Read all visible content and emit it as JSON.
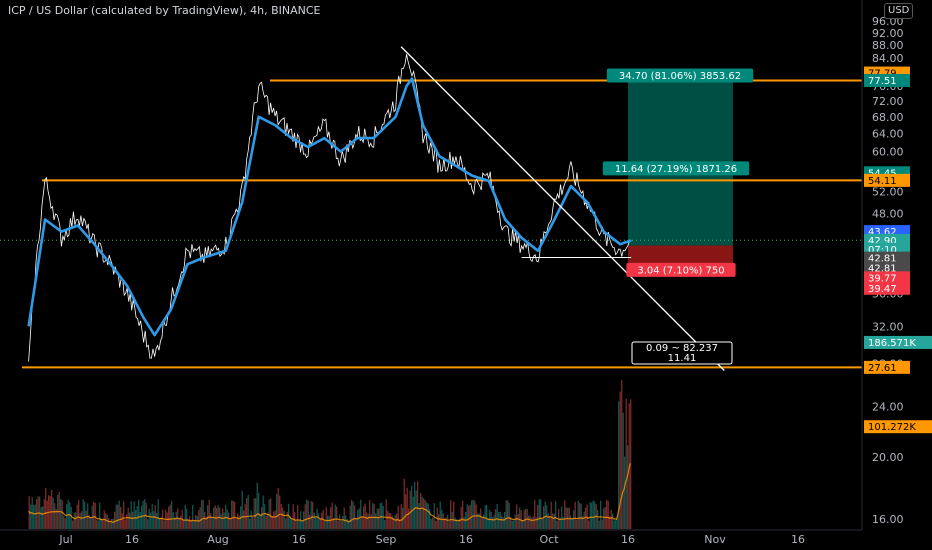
{
  "header": {
    "symbol_line": "ICP / US Dollar (calculated by TradingView), 4h, BINANCE",
    "currency": "USD"
  },
  "chart_data": {
    "type": "line",
    "title": "ICP / US Dollar (calculated by TradingView), 4h, BINANCE",
    "y_axis": {
      "scale": "log",
      "ticks": [
        "96.00",
        "92.00",
        "88.00",
        "84.00",
        "80.00",
        "76.00",
        "72.00",
        "68.00",
        "64.00",
        "60.00",
        "56.00",
        "52.00",
        "48.00",
        "44.00",
        "40.00",
        "36.00",
        "32.00",
        "28.00",
        "24.00",
        "20.00",
        "16.00"
      ]
    },
    "x_axis": {
      "ticks": [
        "Jul",
        "16",
        "Aug",
        "16",
        "Sep",
        "16",
        "Oct",
        "16",
        "Nov",
        "16"
      ]
    },
    "series": [
      {
        "color": "#ffffff",
        "x": [
          "Jun 28",
          "Jul 1",
          "Jul 4",
          "Jul 7",
          "Jul 10",
          "Jul 13",
          "Jul 16",
          "Jul 19",
          "Jul 21",
          "Jul 24",
          "Jul 27",
          "Jul 30",
          "Aug 3",
          "Aug 6",
          "Aug 9",
          "Aug 12",
          "Aug 15",
          "Aug 18",
          "Aug 21",
          "Aug 24",
          "Aug 27",
          "Aug 30",
          "Sep 3",
          "Sep 5",
          "Sep 6",
          "Sep 8",
          "Sep 11",
          "Sep 14",
          "Sep 17",
          "Sep 20",
          "Sep 23",
          "Sep 26",
          "Sep 29",
          "Oct 2",
          "Oct 5",
          "Oct 8",
          "Oct 11",
          "Oct 14",
          "Oct 16"
        ],
        "values": [
          27.6,
          54.1,
          44,
          48,
          43,
          40,
          36,
          31,
          28.5,
          35,
          42,
          41,
          43,
          52,
          76,
          68,
          64,
          60,
          66,
          58,
          64,
          63,
          72,
          87,
          80,
          64,
          57,
          59,
          53,
          55,
          45,
          43,
          41,
          50,
          56,
          50,
          44,
          42,
          43.6
        ]
      },
      {
        "color": "#2f9ae8",
        "x": [
          "Jun 28",
          "Jul 1",
          "Jul 4",
          "Jul 7",
          "Jul 10",
          "Jul 13",
          "Jul 16",
          "Jul 19",
          "Jul 21",
          "Jul 24",
          "Jul 27",
          "Jul 30",
          "Aug 3",
          "Aug 6",
          "Aug 9",
          "Aug 12",
          "Aug 15",
          "Aug 18",
          "Aug 21",
          "Aug 24",
          "Aug 27",
          "Aug 30",
          "Sep 3",
          "Sep 5",
          "Sep 6",
          "Sep 8",
          "Sep 11",
          "Sep 14",
          "Sep 17",
          "Sep 20",
          "Sep 23",
          "Sep 26",
          "Sep 29",
          "Oct 2",
          "Oct 5",
          "Oct 8",
          "Oct 11",
          "Oct 14",
          "Oct 16"
        ],
        "values": [
          32,
          47,
          45,
          46,
          43,
          40,
          37,
          33,
          31,
          34,
          40,
          41,
          42,
          50,
          68,
          66,
          63,
          61,
          63,
          60,
          63,
          63,
          68,
          76,
          78,
          66,
          59,
          57,
          55,
          54,
          47,
          44,
          42,
          47,
          53,
          50,
          45,
          43,
          43.6
        ]
      }
    ],
    "horizontal_levels": [
      {
        "price": 77.51,
        "color": "#ff9800"
      },
      {
        "price": 54.11,
        "color": "#ff9800"
      },
      {
        "price": 27.61,
        "color": "#ff9800"
      }
    ],
    "trendline": {
      "from": [
        "Sep 4",
        87.5
      ],
      "to": [
        "Nov 2",
        27.3
      ]
    },
    "support_line": {
      "from": [
        "Sep 26",
        41.0
      ],
      "to": [
        "Oct 16",
        41.0
      ]
    },
    "position": {
      "entry": 42.81,
      "target": 77.51,
      "stop": 39.77,
      "target_label": "34.70 (81.06%) 3853.62",
      "mid_label": "11.64 (27.19%) 1871.26",
      "stop_label": "3.04 (7.10%) 750",
      "center_label_1": "0.09 ~ 82.237",
      "center_label_2": "11.41"
    },
    "price_badges": [
      {
        "text": "77.79",
        "price": 79.6,
        "bg": "#ff9800",
        "fg": "#000000"
      },
      {
        "text": "77.51",
        "price": 77.51,
        "bg": "#00897b",
        "fg": "#ffffff"
      },
      {
        "text": "54.45",
        "price": 55.6,
        "bg": "#00897b",
        "fg": "#ffffff"
      },
      {
        "text": "54.11",
        "price": 54.11,
        "bg": "#ff9800",
        "fg": "#000000"
      },
      {
        "text": "43.62",
        "price": 45.0,
        "bg": "#2962ff",
        "fg": "#ffffff"
      },
      {
        "text": "42.90",
        "price": 43.6,
        "bg": "#26a69a",
        "fg": "#ffffff"
      },
      {
        "text": "07:10",
        "price": 42.2,
        "bg": "#26a69a",
        "fg": "#ffffff"
      },
      {
        "text": "42.81",
        "price": 40.9,
        "bg": "#4a4a4a",
        "fg": "#ffffff"
      },
      {
        "text": "42.81",
        "price": 39.5,
        "bg": "#4a4a4a",
        "fg": "#ffffff"
      },
      {
        "text": "39.77",
        "price": 38.1,
        "bg": "#f23645",
        "fg": "#ffffff"
      },
      {
        "text": "39.47",
        "price": 36.7,
        "bg": "#f23645",
        "fg": "#ffffff"
      },
      {
        "text": "186.571K",
        "price": 30.2,
        "bg": "#26a69a",
        "fg": "#ffffff"
      },
      {
        "text": "27.61",
        "price": 27.61,
        "bg": "#ff9800",
        "fg": "#000000"
      },
      {
        "text": "101.272K",
        "price": 22.3,
        "bg": "#ff9800",
        "fg": "#000000"
      }
    ],
    "volume": {
      "color_up": "#26a69a",
      "color_down": "#ef5350",
      "ma_color": "#ff9800"
    },
    "colors": {
      "background": "#000000",
      "grid_dots": "#4caf50",
      "profit_zone": "#00695c",
      "loss_zone": "#b71c1c"
    }
  }
}
